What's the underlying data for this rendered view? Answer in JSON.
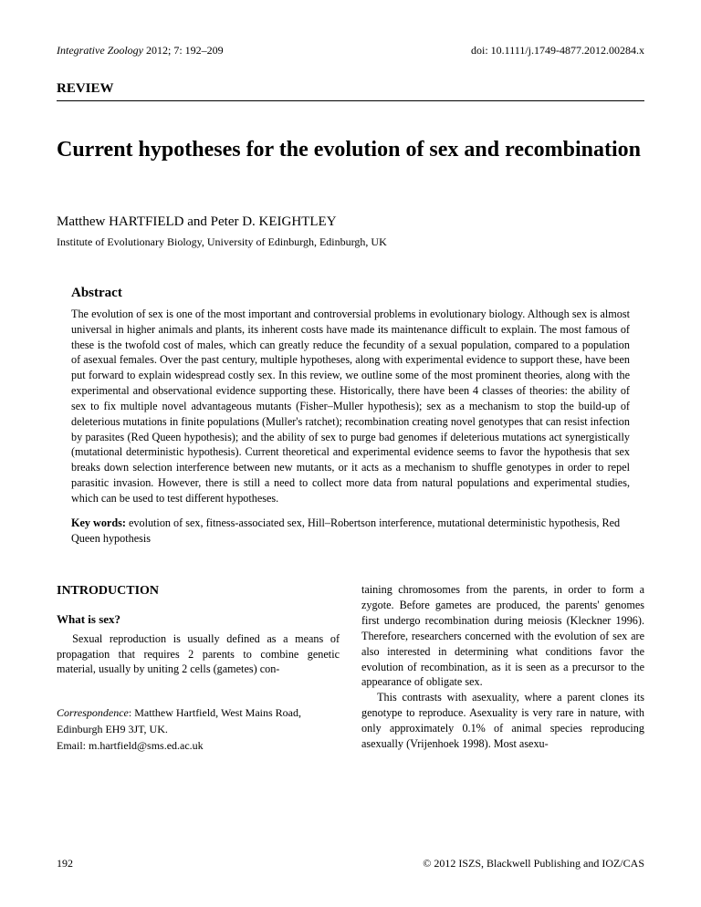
{
  "header": {
    "journal": "Integrative Zoology",
    "year_pages": " 2012; 7: 192–209",
    "doi": "doi: 10.1111/j.1749-4877.2012.00284.x"
  },
  "section_label": "REVIEW",
  "title": "Current hypotheses for the evolution of sex and recombination",
  "authors": "Matthew HARTFIELD and Peter D. KEIGHTLEY",
  "affiliation": "Institute of Evolutionary Biology, University of Edinburgh, Edinburgh, UK",
  "abstract": {
    "heading": "Abstract",
    "text": "The evolution of sex is one of the most important and controversial problems in evolutionary biology. Although sex is almost universal in higher animals and plants, its inherent costs have made its maintenance difficult to explain. The most famous of these is the twofold cost of males, which can greatly reduce the fecundity of a sexual population, compared to a population of asexual females. Over the past century, multiple hypotheses, along with experimental evidence to support these, have been put forward to explain widespread costly sex. In this review, we outline some of the most prominent theories, along with the experimental and observational evidence supporting these. Historically, there have been 4 classes of theories: the ability of sex to fix multiple novel advantageous mutants (Fisher–Muller hypothesis); sex as a mechanism to stop the build-up of deleterious mutations in finite populations (Muller's ratchet); recombination creating novel genotypes that can resist infection by parasites (Red Queen hypothesis); and the ability of sex to purge bad genomes if deleterious mutations act synergistically (mutational deterministic hypothesis). Current theoretical and experimental evidence seems to favor the hypothesis that sex breaks down selection interference between new mutants, or it acts as a mechanism to shuffle genotypes in order to repel parasitic invasion. However, there is still a need to collect more data from natural populations and experimental studies, which can be used to test different hypotheses.",
    "keywords_label": "Key words:",
    "keywords_text": " evolution of sex, fitness-associated sex, Hill–Robertson interference, mutational deterministic hypothesis, Red Queen hypothesis"
  },
  "body": {
    "intro_heading": "INTRODUCTION",
    "subheading": "What is sex?",
    "left_para": "Sexual reproduction is usually defined as a means of propagation that requires 2 parents to combine genetic material, usually by uniting 2 cells (gametes) con-",
    "right_para1": "taining chromosomes from the parents, in order to form a zygote. Before gametes are produced, the parents' genomes first undergo recombination during meiosis (Kleckner 1996). Therefore, researchers concerned with the evolution of sex are also interested in determining what conditions favor the evolution of recombination, as it is seen as a precursor to the appearance of obligate sex.",
    "right_para2": "This contrasts with asexuality, where a parent clones its genotype to reproduce. Asexuality is very rare in nature, with only approximately 0.1% of animal species reproducing asexually (Vrijenhoek 1998). Most asexu-"
  },
  "correspondence": {
    "label": "Correspondence",
    "line1": ": Matthew Hartfield, West Mains Road,",
    "line2": "Edinburgh EH9 3JT, UK.",
    "line3": "Email: m.hartfield@sms.ed.ac.uk"
  },
  "footer": {
    "page": "192",
    "copyright": "© 2012 ISZS, Blackwell Publishing and IOZ/CAS"
  }
}
